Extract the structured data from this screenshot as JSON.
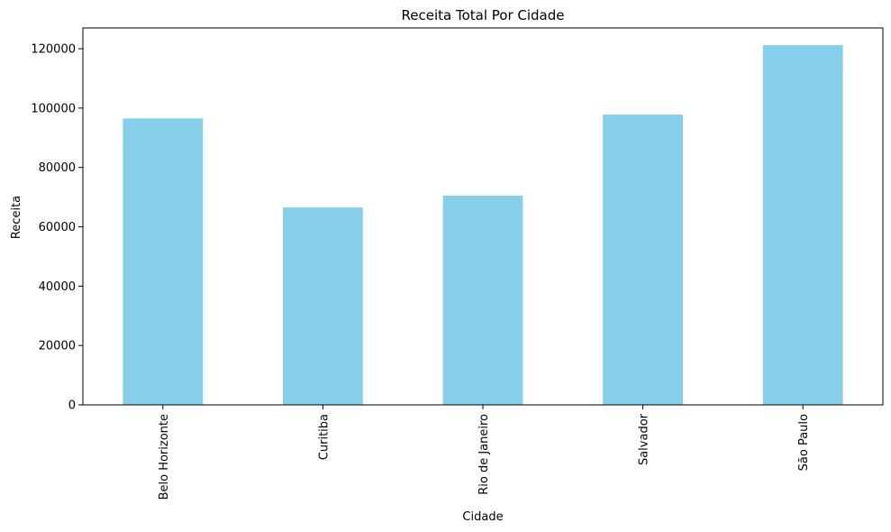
{
  "chart_data": {
    "type": "bar",
    "title": "Receita Total Por Cidade",
    "xlabel": "Cidade",
    "ylabel": "Receita",
    "categories": [
      "Belo Horizonte",
      "Curitiba",
      "Rio de Janeiro",
      "Salvador",
      "São Paulo"
    ],
    "values": [
      96500,
      66500,
      70500,
      97800,
      121200
    ],
    "ylim": [
      0,
      127000
    ],
    "yticks": [
      0,
      20000,
      40000,
      60000,
      80000,
      100000,
      120000
    ],
    "bar_color": "#87CEEB",
    "grid": false,
    "legend": "none"
  }
}
